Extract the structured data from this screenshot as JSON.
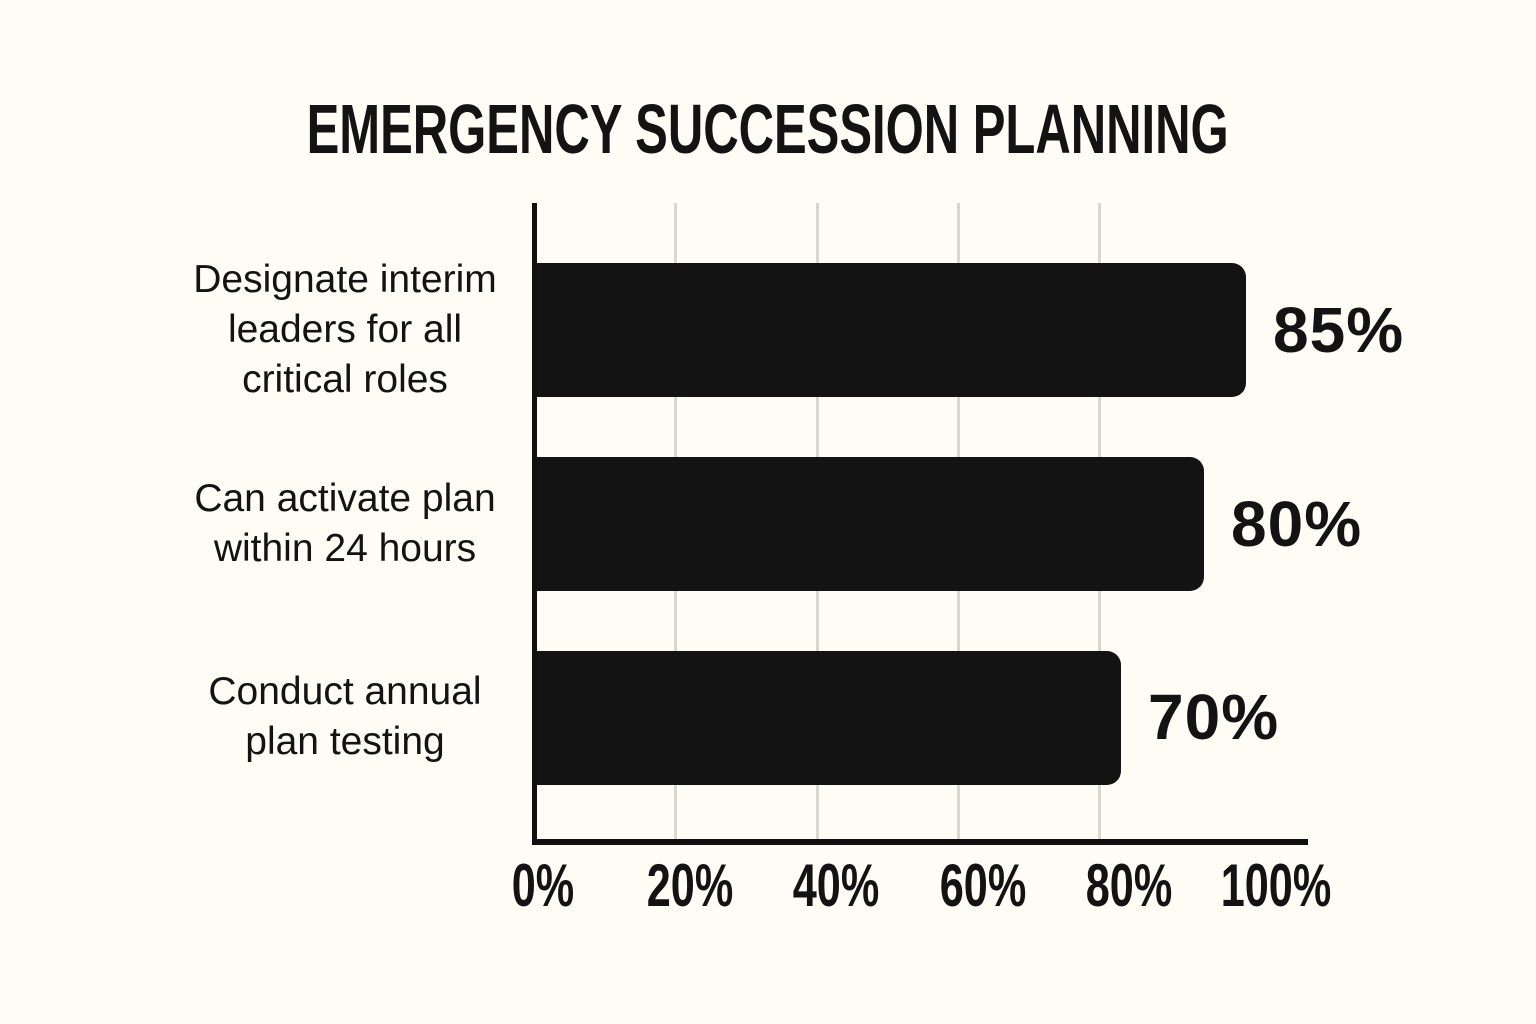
{
  "title": "EMERGENCY SUCCESSION PLANNING",
  "chart_data": {
    "type": "bar",
    "orientation": "horizontal",
    "title": "EMERGENCY SUCCESSION PLANNING",
    "categories": [
      "Designate interim leaders for all critical roles",
      "Can activate plan within 24 hours",
      "Conduct annual plan testing"
    ],
    "values": [
      85,
      80,
      70
    ],
    "xlim": [
      0,
      100
    ],
    "x_tick_labels": [
      "0%",
      "20%",
      "40%",
      "60%",
      "80%",
      "100%"
    ],
    "grid": "vertical gridlines at 20/40/60/80, no legend",
    "rows": [
      {
        "label_lines": [
          "Designate interim",
          "leaders for all",
          "critical roles"
        ],
        "value": 85,
        "value_label": "85%"
      },
      {
        "label_lines": [
          "Can activate plan",
          "within 24 hours"
        ],
        "value": 80,
        "value_label": "80%"
      },
      {
        "label_lines": [
          "Conduct annual",
          "plan testing"
        ],
        "value": 70,
        "value_label": "70%"
      }
    ],
    "colors": {
      "bar": "#131313",
      "background": "#FDFCF5",
      "gridline": "#D8D7D1",
      "axis": "#101010",
      "text": "#131313"
    }
  }
}
